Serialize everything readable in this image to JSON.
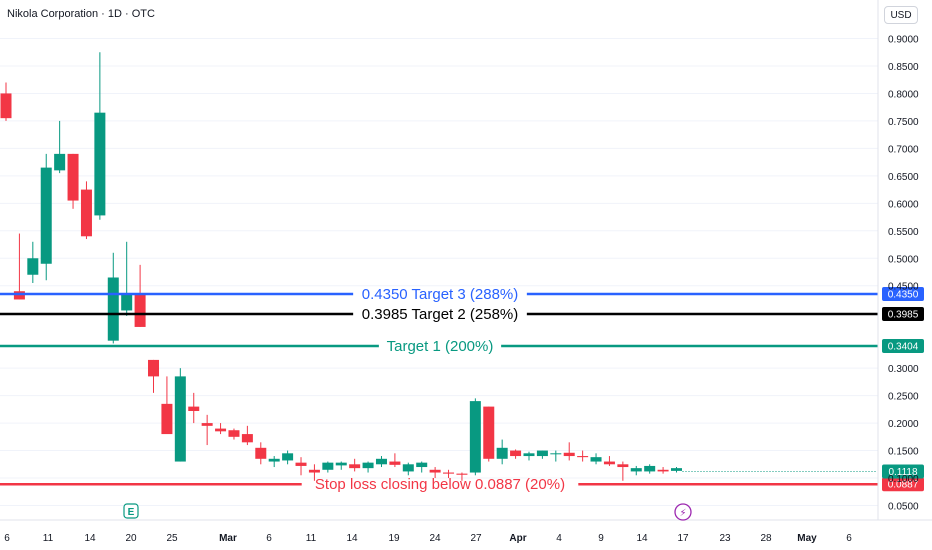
{
  "header": {
    "title": "Nikola Corporation · 1D · OTC",
    "currency": "USD"
  },
  "chart_data": {
    "type": "candlestick",
    "title": "Nikola Corporation · 1D · OTC",
    "currency": "USD",
    "y_axis": {
      "range": [
        0.032,
        0.935
      ],
      "ticks": [
        "0.9000",
        "0.8500",
        "0.8000",
        "0.7500",
        "0.7000",
        "0.6500",
        "0.6000",
        "0.5500",
        "0.5000",
        "0.4500",
        "0.3000",
        "0.2500",
        "0.2000",
        "0.1500",
        "0.1000",
        "0.0500"
      ]
    },
    "x_axis": {
      "labels": [
        "6",
        "11",
        "14",
        "20",
        "25",
        "Mar",
        "6",
        "11",
        "14",
        "19",
        "24",
        "27",
        "Apr",
        "4",
        "9",
        "14",
        "17",
        "23",
        "28",
        "May",
        "6"
      ],
      "bold_labels": [
        "Mar",
        "Apr",
        "May"
      ]
    },
    "candles": [
      {
        "i": 0,
        "o": 0.8,
        "h": 0.82,
        "l": 0.75,
        "c": 0.755
      },
      {
        "i": 3,
        "o": 0.44,
        "h": 0.545,
        "l": 0.425,
        "c": 0.425
      },
      {
        "i": 6,
        "o": 0.47,
        "h": 0.53,
        "l": 0.455,
        "c": 0.5
      },
      {
        "i": 9,
        "o": 0.49,
        "h": 0.69,
        "l": 0.46,
        "c": 0.665
      },
      {
        "i": 12,
        "o": 0.66,
        "h": 0.75,
        "l": 0.655,
        "c": 0.69
      },
      {
        "i": 15,
        "o": 0.69,
        "h": 0.69,
        "l": 0.59,
        "c": 0.605
      },
      {
        "i": 18,
        "o": 0.625,
        "h": 0.64,
        "l": 0.535,
        "c": 0.54
      },
      {
        "i": 21,
        "o": 0.578,
        "h": 0.875,
        "l": 0.57,
        "c": 0.765
      },
      {
        "i": 24,
        "o": 0.35,
        "h": 0.51,
        "l": 0.345,
        "c": 0.465
      },
      {
        "i": 27,
        "o": 0.405,
        "h": 0.53,
        "l": 0.395,
        "c": 0.435
      },
      {
        "i": 30,
        "o": 0.435,
        "h": 0.488,
        "l": 0.375,
        "c": 0.375
      },
      {
        "i": 33,
        "o": 0.315,
        "h": 0.315,
        "l": 0.255,
        "c": 0.285
      },
      {
        "i": 36,
        "o": 0.235,
        "h": 0.285,
        "l": 0.185,
        "c": 0.18
      },
      {
        "i": 39,
        "o": 0.13,
        "h": 0.3,
        "l": 0.13,
        "c": 0.285
      },
      {
        "i": 42,
        "o": 0.23,
        "h": 0.255,
        "l": 0.2,
        "c": 0.222
      },
      {
        "i": 45,
        "o": 0.2,
        "h": 0.215,
        "l": 0.16,
        "c": 0.195
      },
      {
        "i": 48,
        "o": 0.19,
        "h": 0.2,
        "l": 0.18,
        "c": 0.185
      },
      {
        "i": 51,
        "o": 0.187,
        "h": 0.19,
        "l": 0.17,
        "c": 0.175
      },
      {
        "i": 54,
        "o": 0.18,
        "h": 0.195,
        "l": 0.16,
        "c": 0.165
      },
      {
        "i": 57,
        "o": 0.155,
        "h": 0.165,
        "l": 0.125,
        "c": 0.135
      },
      {
        "i": 60,
        "o": 0.13,
        "h": 0.14,
        "l": 0.12,
        "c": 0.135
      },
      {
        "i": 63,
        "o": 0.132,
        "h": 0.15,
        "l": 0.125,
        "c": 0.145
      },
      {
        "i": 66,
        "o": 0.128,
        "h": 0.138,
        "l": 0.105,
        "c": 0.122
      },
      {
        "i": 69,
        "o": 0.115,
        "h": 0.125,
        "l": 0.095,
        "c": 0.11
      },
      {
        "i": 72,
        "o": 0.115,
        "h": 0.13,
        "l": 0.11,
        "c": 0.128
      },
      {
        "i": 75,
        "o": 0.123,
        "h": 0.13,
        "l": 0.115,
        "c": 0.128
      },
      {
        "i": 78,
        "o": 0.125,
        "h": 0.135,
        "l": 0.112,
        "c": 0.118
      },
      {
        "i": 81,
        "o": 0.118,
        "h": 0.13,
        "l": 0.11,
        "c": 0.128
      },
      {
        "i": 84,
        "o": 0.125,
        "h": 0.14,
        "l": 0.12,
        "c": 0.135
      },
      {
        "i": 87,
        "o": 0.13,
        "h": 0.145,
        "l": 0.12,
        "c": 0.124
      },
      {
        "i": 90,
        "o": 0.112,
        "h": 0.128,
        "l": 0.105,
        "c": 0.125
      },
      {
        "i": 93,
        "o": 0.12,
        "h": 0.13,
        "l": 0.11,
        "c": 0.128
      },
      {
        "i": 96,
        "o": 0.115,
        "h": 0.12,
        "l": 0.1,
        "c": 0.11
      },
      {
        "i": 99,
        "o": 0.11,
        "h": 0.115,
        "l": 0.1,
        "c": 0.108
      },
      {
        "i": 102,
        "o": 0.108,
        "h": 0.11,
        "l": 0.095,
        "c": 0.106
      },
      {
        "i": 105,
        "o": 0.11,
        "h": 0.245,
        "l": 0.105,
        "c": 0.24
      },
      {
        "i": 108,
        "o": 0.23,
        "h": 0.23,
        "l": 0.13,
        "c": 0.135
      },
      {
        "i": 111,
        "o": 0.135,
        "h": 0.17,
        "l": 0.125,
        "c": 0.155
      },
      {
        "i": 114,
        "o": 0.15,
        "h": 0.152,
        "l": 0.135,
        "c": 0.14
      },
      {
        "i": 117,
        "o": 0.14,
        "h": 0.148,
        "l": 0.132,
        "c": 0.145
      },
      {
        "i": 120,
        "o": 0.14,
        "h": 0.15,
        "l": 0.135,
        "c": 0.15
      },
      {
        "i": 123,
        "o": 0.145,
        "h": 0.15,
        "l": 0.13,
        "c": 0.145
      },
      {
        "i": 126,
        "o": 0.146,
        "h": 0.165,
        "l": 0.132,
        "c": 0.14
      },
      {
        "i": 129,
        "o": 0.14,
        "h": 0.15,
        "l": 0.13,
        "c": 0.138
      },
      {
        "i": 132,
        "o": 0.13,
        "h": 0.145,
        "l": 0.125,
        "c": 0.138
      },
      {
        "i": 135,
        "o": 0.13,
        "h": 0.14,
        "l": 0.122,
        "c": 0.125
      },
      {
        "i": 138,
        "o": 0.125,
        "h": 0.13,
        "l": 0.095,
        "c": 0.12
      },
      {
        "i": 141,
        "o": 0.112,
        "h": 0.122,
        "l": 0.105,
        "c": 0.118
      },
      {
        "i": 144,
        "o": 0.112,
        "h": 0.125,
        "l": 0.108,
        "c": 0.122
      },
      {
        "i": 147,
        "o": 0.115,
        "h": 0.12,
        "l": 0.108,
        "c": 0.112
      },
      {
        "i": 150,
        "o": 0.113,
        "h": 0.12,
        "l": 0.11,
        "c": 0.118
      }
    ],
    "levels": [
      {
        "id": "target3",
        "price": 0.435,
        "text": "0.4350 Target 3 (288%)",
        "color": "#2962ff",
        "tag": "0.4350"
      },
      {
        "id": "target2",
        "price": 0.3985,
        "text": "0.3985 Target 2 (258%)",
        "color": "#000000",
        "tag": "0.3985"
      },
      {
        "id": "target1",
        "price": 0.3404,
        "text": "Target 1 (200%)",
        "color": "#089981",
        "tag": "0.3404"
      },
      {
        "id": "stoploss",
        "price": 0.0887,
        "text": "Stop loss closing below 0.0887 (20%)",
        "color": "#f23645",
        "tag": "0.0887"
      }
    ],
    "last_price": {
      "value": 0.1118,
      "tag": "0.1118",
      "color": "#089981"
    },
    "colors": {
      "up": "#089981",
      "down": "#f23645",
      "grid": "#f0f3fa",
      "text": "#131722"
    },
    "markers": [
      {
        "type": "earnings",
        "label": "E",
        "color": "#089981"
      },
      {
        "type": "dividend-flash",
        "label": "⚡",
        "color": "#9c27b0"
      }
    ]
  }
}
